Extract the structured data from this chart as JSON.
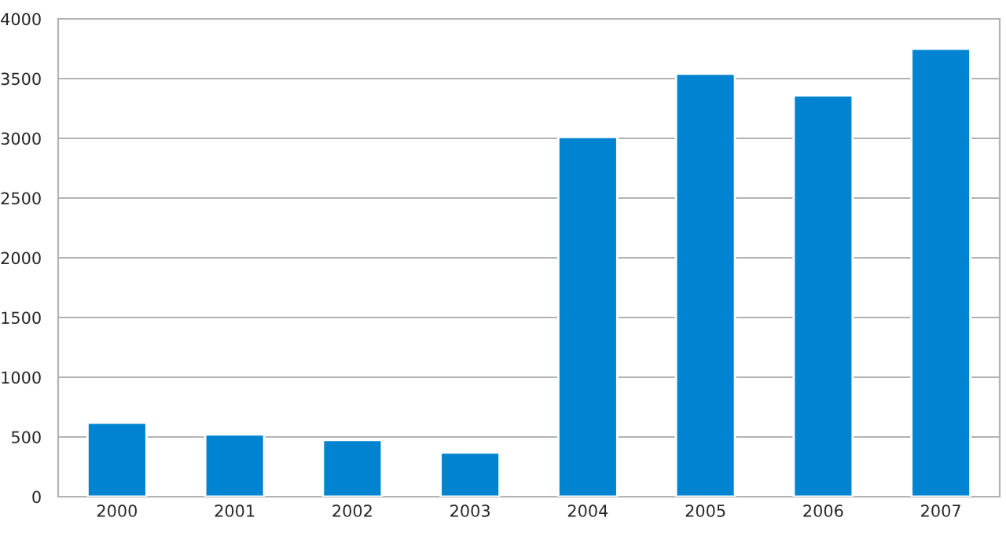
{
  "chart_data": {
    "type": "bar",
    "categories": [
      "2000",
      "2001",
      "2002",
      "2003",
      "2004",
      "2005",
      "2006",
      "2007"
    ],
    "values": [
      620,
      520,
      475,
      370,
      3010,
      3540,
      3360,
      3750
    ],
    "color": "#0084d1",
    "ylim": [
      0,
      4000
    ],
    "yticks": [
      0,
      500,
      1000,
      1500,
      2000,
      2500,
      3000,
      3500,
      4000
    ],
    "grid": "y"
  }
}
